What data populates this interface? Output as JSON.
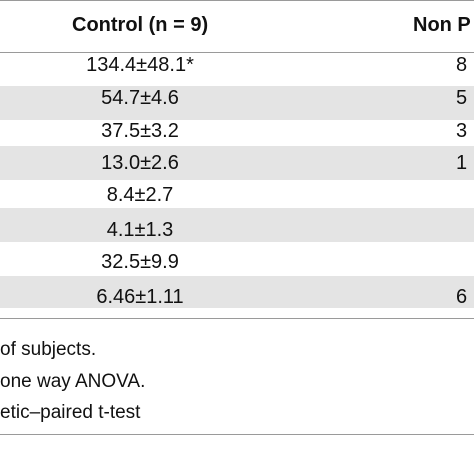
{
  "table": {
    "columns": [
      "Control (n = 9)",
      "Non P"
    ],
    "rows": [
      {
        "control": "134.4±48.1*",
        "non_p": "8"
      },
      {
        "control": "54.7±4.6",
        "non_p": "5"
      },
      {
        "control": "37.5±3.2",
        "non_p": "3"
      },
      {
        "control": "13.0±2.6",
        "non_p": "1"
      },
      {
        "control": "8.4±2.7",
        "non_p": ""
      },
      {
        "control": "4.1±1.3",
        "non_p": ""
      },
      {
        "control": "32.5±9.9",
        "non_p": ""
      },
      {
        "control": "6.46±1.11",
        "non_p": "6"
      }
    ]
  },
  "footnotes": [
    "of subjects.",
    "one way ANOVA.",
    "etic–paired t-test"
  ],
  "colors": {
    "stripe": "#e4e4e4",
    "rule": "#9a9a9a"
  }
}
